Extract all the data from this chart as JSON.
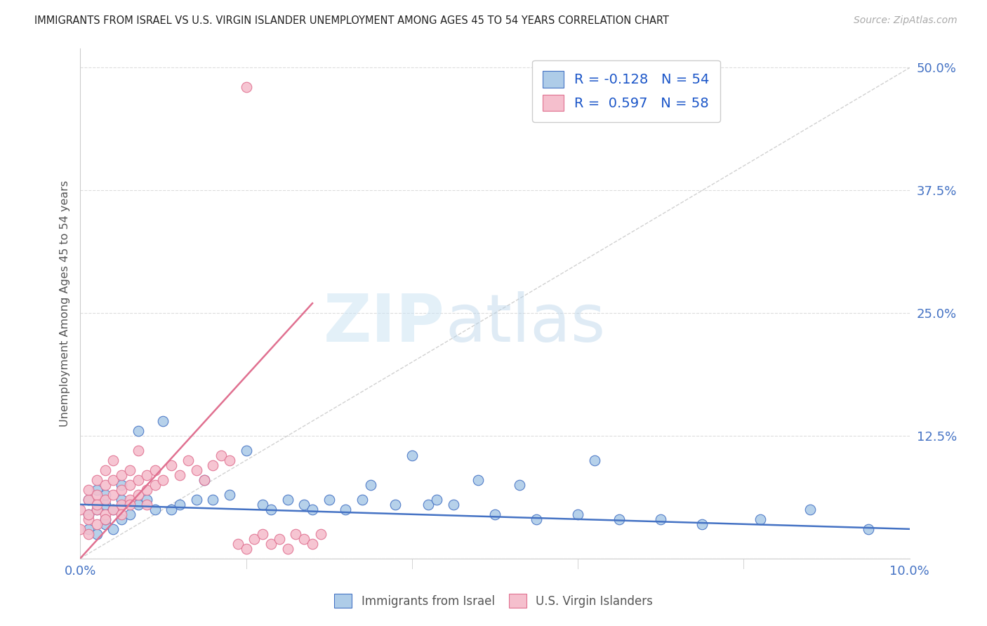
{
  "title": "IMMIGRANTS FROM ISRAEL VS U.S. VIRGIN ISLANDER UNEMPLOYMENT AMONG AGES 45 TO 54 YEARS CORRELATION CHART",
  "source": "Source: ZipAtlas.com",
  "ylabel": "Unemployment Among Ages 45 to 54 years",
  "xlim": [
    0.0,
    0.1
  ],
  "ylim": [
    -0.005,
    0.52
  ],
  "xticks": [
    0.0,
    0.02,
    0.04,
    0.06,
    0.08,
    0.1
  ],
  "xticklabels": [
    "0.0%",
    "",
    "",
    "",
    "",
    "10.0%"
  ],
  "yticks": [
    0.0,
    0.125,
    0.25,
    0.375,
    0.5
  ],
  "yticklabels": [
    "",
    "12.5%",
    "25.0%",
    "37.5%",
    "50.0%"
  ],
  "legend_labels": [
    "Immigrants from Israel",
    "U.S. Virgin Islanders"
  ],
  "blue_R": "-0.128",
  "blue_N": "54",
  "pink_R": "0.597",
  "pink_N": "58",
  "blue_color": "#aecce8",
  "pink_color": "#f5bfcd",
  "blue_line_color": "#4472c4",
  "pink_line_color": "#e07090",
  "background_color": "#ffffff",
  "blue_scatter_x": [
    0.001,
    0.001,
    0.001,
    0.002,
    0.002,
    0.002,
    0.003,
    0.003,
    0.003,
    0.003,
    0.004,
    0.004,
    0.005,
    0.005,
    0.005,
    0.006,
    0.007,
    0.007,
    0.008,
    0.009,
    0.01,
    0.011,
    0.012,
    0.014,
    0.015,
    0.016,
    0.018,
    0.02,
    0.022,
    0.023,
    0.025,
    0.027,
    0.028,
    0.03,
    0.032,
    0.034,
    0.035,
    0.038,
    0.04,
    0.042,
    0.043,
    0.045,
    0.048,
    0.05,
    0.053,
    0.055,
    0.06,
    0.062,
    0.065,
    0.07,
    0.075,
    0.082,
    0.088,
    0.095
  ],
  "blue_scatter_y": [
    0.03,
    0.045,
    0.06,
    0.025,
    0.05,
    0.07,
    0.035,
    0.055,
    0.04,
    0.065,
    0.05,
    0.03,
    0.06,
    0.04,
    0.075,
    0.045,
    0.13,
    0.055,
    0.06,
    0.05,
    0.14,
    0.05,
    0.055,
    0.06,
    0.08,
    0.06,
    0.065,
    0.11,
    0.055,
    0.05,
    0.06,
    0.055,
    0.05,
    0.06,
    0.05,
    0.06,
    0.075,
    0.055,
    0.105,
    0.055,
    0.06,
    0.055,
    0.08,
    0.045,
    0.075,
    0.04,
    0.045,
    0.1,
    0.04,
    0.04,
    0.035,
    0.04,
    0.05,
    0.03
  ],
  "pink_scatter_x": [
    0.0,
    0.0,
    0.001,
    0.001,
    0.001,
    0.001,
    0.001,
    0.002,
    0.002,
    0.002,
    0.002,
    0.002,
    0.003,
    0.003,
    0.003,
    0.003,
    0.003,
    0.004,
    0.004,
    0.004,
    0.004,
    0.005,
    0.005,
    0.005,
    0.005,
    0.006,
    0.006,
    0.006,
    0.006,
    0.007,
    0.007,
    0.007,
    0.008,
    0.008,
    0.008,
    0.009,
    0.009,
    0.01,
    0.011,
    0.012,
    0.013,
    0.014,
    0.015,
    0.016,
    0.017,
    0.018,
    0.019,
    0.02,
    0.021,
    0.022,
    0.023,
    0.024,
    0.025,
    0.026,
    0.027,
    0.028,
    0.029,
    0.02
  ],
  "pink_scatter_y": [
    0.03,
    0.05,
    0.04,
    0.06,
    0.025,
    0.07,
    0.045,
    0.05,
    0.065,
    0.035,
    0.08,
    0.055,
    0.045,
    0.06,
    0.075,
    0.04,
    0.09,
    0.05,
    0.065,
    0.08,
    0.1,
    0.055,
    0.07,
    0.085,
    0.045,
    0.06,
    0.075,
    0.09,
    0.055,
    0.065,
    0.08,
    0.11,
    0.07,
    0.085,
    0.055,
    0.075,
    0.09,
    0.08,
    0.095,
    0.085,
    0.1,
    0.09,
    0.08,
    0.095,
    0.105,
    0.1,
    0.015,
    0.01,
    0.02,
    0.025,
    0.015,
    0.02,
    0.01,
    0.025,
    0.02,
    0.015,
    0.025,
    0.48
  ],
  "pink_trend_x0": 0.0,
  "pink_trend_y0": 0.0,
  "pink_trend_x1": 0.028,
  "pink_trend_y1": 0.26,
  "blue_trend_x0": 0.0,
  "blue_trend_y0": 0.055,
  "blue_trend_x1": 0.1,
  "blue_trend_y1": 0.03
}
